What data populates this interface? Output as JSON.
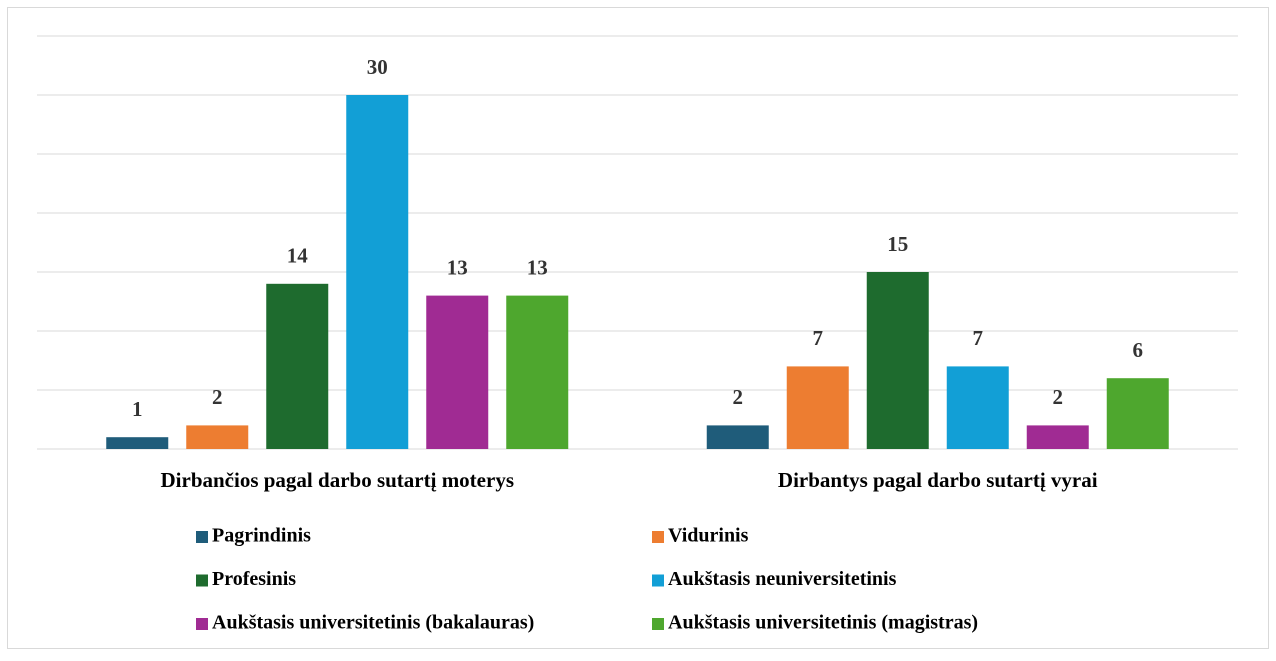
{
  "chart_data": {
    "type": "bar",
    "categories": [
      "Dirbančios pagal darbo sutartį moterys",
      "Dirbantys pagal darbo sutartį vyrai"
    ],
    "series": [
      {
        "name": "Pagrindinis",
        "color": "#1f5c7a",
        "values": [
          1,
          2
        ]
      },
      {
        "name": "Vidurinis",
        "color": "#ed7d31",
        "values": [
          2,
          7
        ]
      },
      {
        "name": "Profesinis",
        "color": "#1e6b2e",
        "values": [
          14,
          15
        ]
      },
      {
        "name": "Aukštasis neuniversitetinis",
        "color": "#129fd6",
        "values": [
          30,
          7
        ]
      },
      {
        "name": "Aukštasis universitetinis (bakalauras)",
        "color": "#a02b93",
        "values": [
          13,
          2
        ]
      },
      {
        "name": "Aukštasis universitetinis (magistras)",
        "color": "#4ea72e",
        "values": [
          13,
          6
        ]
      }
    ],
    "ylim": [
      0,
      35
    ],
    "yticks": [
      0,
      5,
      10,
      15,
      20,
      25,
      30,
      35
    ],
    "grid": true,
    "legend": "bottom"
  }
}
